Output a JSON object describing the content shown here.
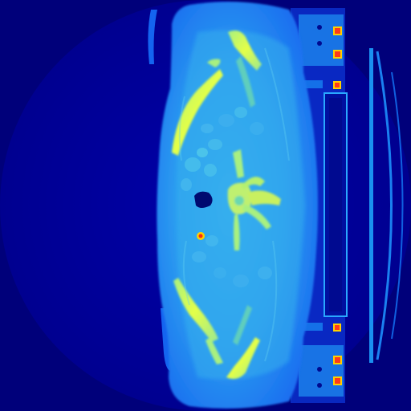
{
  "image": {
    "kind": "ct-axial-slice",
    "colormap": "jet",
    "palette": {
      "background": "#00007a",
      "soft_tissue_outer": "#1e78f0",
      "soft_tissue_inner": "#2fa0f2",
      "muscle": "#3aa8ea",
      "bone": "#c8f060",
      "bone_dense": "#e8ff40",
      "marker": "#ff3a1a",
      "marker_core": "#ffd000",
      "table_dark": "#000a90",
      "table_light": "#28a8ff"
    }
  }
}
